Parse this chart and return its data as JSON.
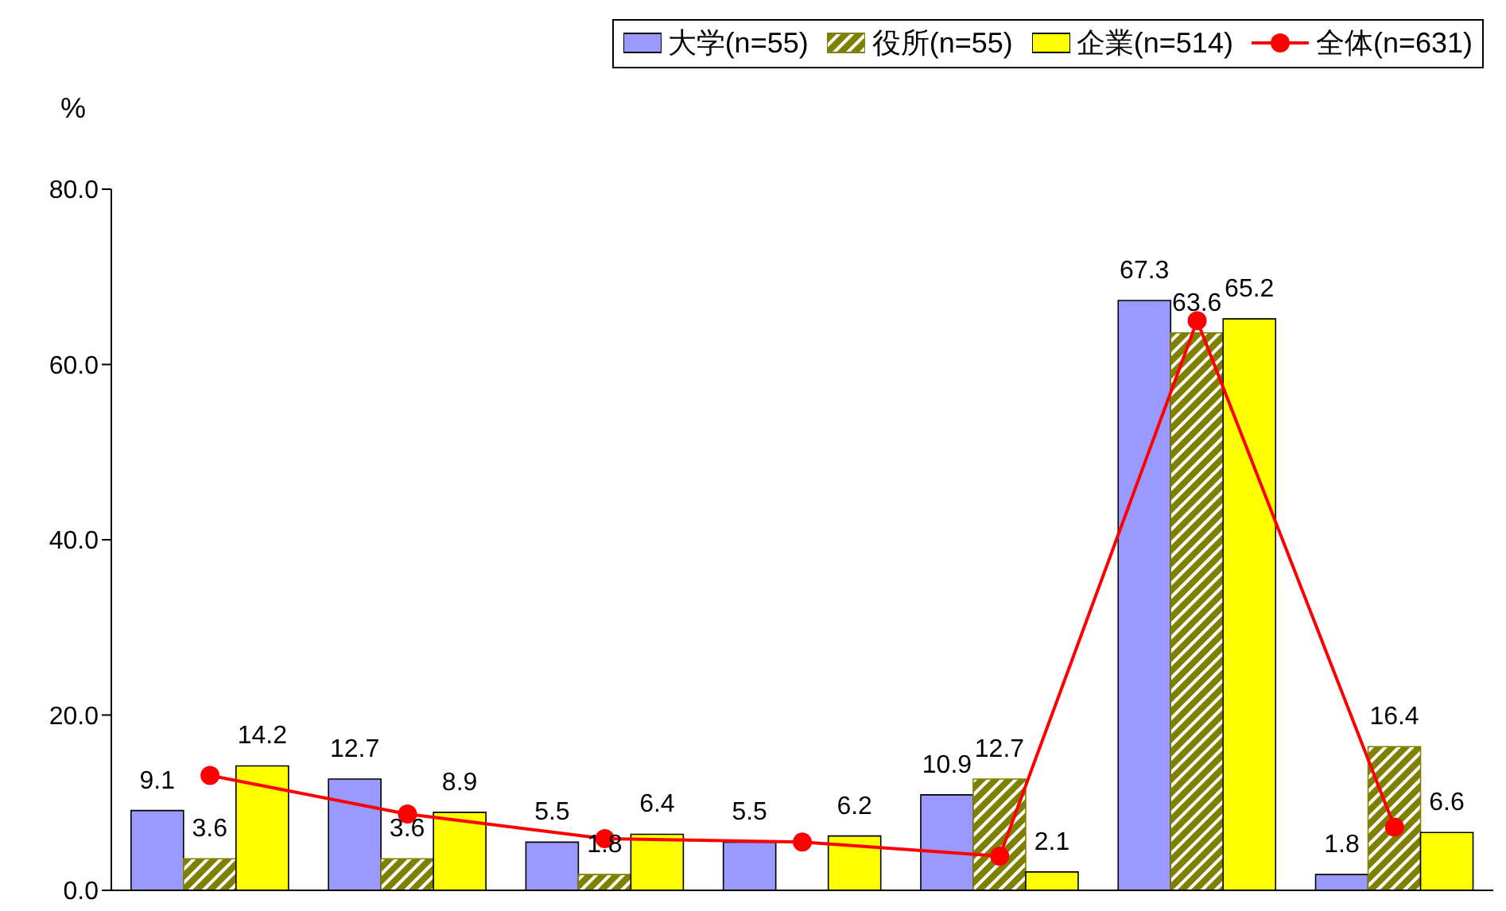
{
  "chart_data": {
    "type": "bar",
    "ylabel": "%",
    "categories": [
      null,
      null,
      null,
      null,
      null,
      null,
      null
    ],
    "series": [
      {
        "name": "大学(n=55)",
        "color": "#9999ff",
        "values": [
          9.1,
          12.7,
          5.5,
          5.5,
          10.9,
          67.3,
          1.8
        ],
        "value_labels": [
          "9.1",
          "12.7",
          "5.5",
          "5.5",
          "10.9",
          "67.3",
          "1.8"
        ]
      },
      {
        "name": "役所(n=55)",
        "color": "#808000",
        "values": [
          3.6,
          3.6,
          1.8,
          null,
          12.7,
          63.6,
          16.4
        ],
        "value_labels": [
          "3.6",
          "3.6",
          "1.8",
          null,
          "12.7",
          "63.6",
          "16.4"
        ]
      },
      {
        "name": "企業(n=514)",
        "color": "#ffff00",
        "values": [
          14.2,
          8.9,
          6.4,
          6.2,
          2.1,
          65.2,
          6.6
        ],
        "value_labels": [
          "14.2",
          "8.9",
          "6.4",
          "6.2",
          "2.1",
          "65.2",
          "6.6"
        ]
      },
      {
        "name": "全体(n=631)",
        "color": "#ff0000",
        "type": "line",
        "marker": "circle",
        "values": [
          13.1,
          8.7,
          5.9,
          5.5,
          3.9,
          65.0,
          7.2
        ]
      }
    ],
    "ylim": [
      0,
      80
    ],
    "yticks": [
      {
        "value": 0,
        "label": "0.0"
      },
      {
        "value": 20,
        "label": "20.0"
      },
      {
        "value": 40,
        "label": "40.0"
      },
      {
        "value": 60,
        "label": "60.0"
      },
      {
        "value": 80,
        "label": "80.0"
      }
    ],
    "legend": "top right",
    "grid": false
  }
}
